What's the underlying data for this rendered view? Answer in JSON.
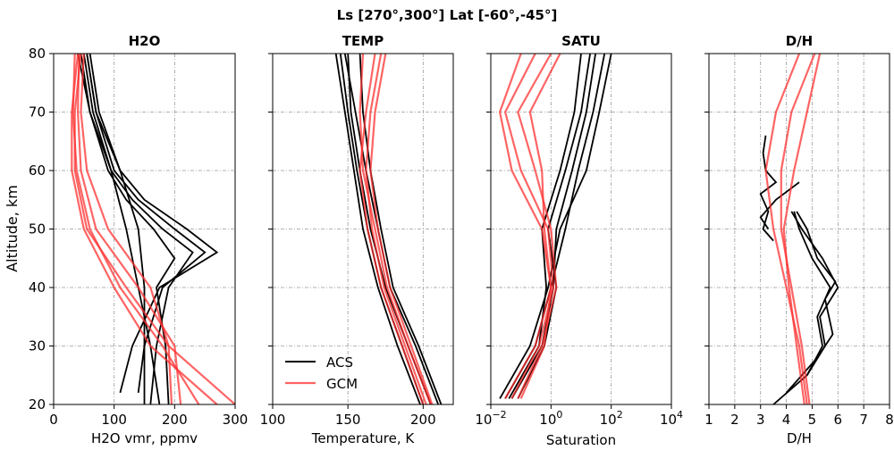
{
  "figure": {
    "suptitle": "Ls [270°,300°] Lat [-60°,-45°]",
    "ylabel": "Altitude, km",
    "y_ticks": [
      "20",
      "30",
      "40",
      "50",
      "60",
      "70",
      "80"
    ],
    "legend": {
      "acs": "ACS",
      "gcm": "GCM"
    },
    "colors": {
      "acs": "#000000",
      "gcm": "#ff3030"
    }
  },
  "chart_data": [
    {
      "type": "line",
      "title": "H2O",
      "xlabel": "H2O vmr, ppmv",
      "xscale": "linear",
      "xlim": [
        0,
        300
      ],
      "ylim": [
        20,
        80
      ],
      "x_ticks": [
        "0",
        "100",
        "200",
        "300"
      ],
      "grid": true,
      "series": [
        {
          "group": "ACS",
          "altitude": [
            22,
            30,
            40,
            46,
            50,
            55,
            60,
            70,
            80
          ],
          "x": [
            110,
            130,
            175,
            270,
            220,
            150,
            110,
            75,
            60
          ]
        },
        {
          "group": "ACS",
          "altitude": [
            22,
            30,
            40,
            46,
            50,
            55,
            60,
            70,
            80
          ],
          "x": [
            140,
            150,
            180,
            250,
            200,
            140,
            100,
            70,
            55
          ]
        },
        {
          "group": "ACS",
          "altitude": [
            20,
            30,
            40,
            46,
            50,
            55,
            60,
            70,
            80
          ],
          "x": [
            160,
            170,
            190,
            230,
            180,
            130,
            95,
            65,
            50
          ]
        },
        {
          "group": "ACS",
          "altitude": [
            20,
            30,
            40,
            45,
            50,
            55,
            60,
            70,
            80
          ],
          "x": [
            190,
            185,
            170,
            200,
            165,
            120,
            90,
            60,
            45
          ]
        },
        {
          "group": "ACS",
          "altitude": [
            20,
            30,
            40,
            50,
            60,
            70,
            80
          ],
          "x": [
            150,
            150,
            150,
            140,
            110,
            70,
            55
          ]
        },
        {
          "group": "ACS",
          "altitude": [
            20,
            30,
            40,
            50,
            60,
            70,
            80
          ],
          "x": [
            175,
            160,
            140,
            120,
            95,
            60,
            40
          ]
        },
        {
          "group": "GCM",
          "altitude": [
            20,
            30,
            40,
            50,
            60,
            70,
            80
          ],
          "x": [
            300,
            190,
            120,
            55,
            35,
            35,
            45
          ]
        },
        {
          "group": "GCM",
          "altitude": [
            20,
            30,
            40,
            50,
            60,
            70,
            80
          ],
          "x": [
            270,
            160,
            100,
            50,
            30,
            30,
            40
          ]
        },
        {
          "group": "GCM",
          "altitude": [
            20,
            30,
            40,
            50,
            60,
            70,
            80
          ],
          "x": [
            240,
            180,
            110,
            60,
            38,
            32,
            35
          ]
        },
        {
          "group": "GCM",
          "altitude": [
            20,
            30,
            40,
            50,
            60,
            70,
            80
          ],
          "x": [
            210,
            200,
            140,
            70,
            45,
            40,
            42
          ]
        },
        {
          "group": "GCM",
          "altitude": [
            20,
            30,
            40,
            50,
            60,
            70,
            80
          ],
          "x": [
            195,
            190,
            160,
            90,
            55,
            45,
            50
          ]
        }
      ]
    },
    {
      "type": "line",
      "title": "TEMP",
      "xlabel": "Temperature, K",
      "xscale": "linear",
      "xlim": [
        100,
        220
      ],
      "ylim": [
        20,
        80
      ],
      "x_ticks": [
        "100",
        "150",
        "200"
      ],
      "grid": true,
      "series": [
        {
          "group": "ACS",
          "altitude": [
            20,
            30,
            40,
            50,
            60,
            70,
            80
          ],
          "x": [
            210,
            195,
            178,
            170,
            162,
            155,
            148
          ]
        },
        {
          "group": "ACS",
          "altitude": [
            20,
            30,
            40,
            50,
            60,
            70,
            80
          ],
          "x": [
            205,
            190,
            175,
            165,
            158,
            152,
            150
          ]
        },
        {
          "group": "ACS",
          "altitude": [
            20,
            30,
            40,
            50,
            60,
            70,
            80
          ],
          "x": [
            200,
            186,
            172,
            163,
            156,
            150,
            145
          ]
        },
        {
          "group": "ACS",
          "altitude": [
            20,
            30,
            40,
            50,
            60,
            70,
            80
          ],
          "x": [
            198,
            183,
            170,
            160,
            154,
            148,
            142
          ]
        },
        {
          "group": "ACS",
          "altitude": [
            20,
            30,
            40,
            50,
            60,
            70,
            80
          ],
          "x": [
            212,
            197,
            180,
            172,
            165,
            160,
            158
          ]
        },
        {
          "group": "GCM",
          "altitude": [
            20,
            30,
            40,
            50,
            60,
            70,
            80
          ],
          "x": [
            205,
            190,
            176,
            168,
            160,
            158,
            160
          ]
        },
        {
          "group": "GCM",
          "altitude": [
            20,
            30,
            40,
            50,
            60,
            70,
            80
          ],
          "x": [
            200,
            186,
            172,
            163,
            158,
            162,
            168
          ]
        },
        {
          "group": "GCM",
          "altitude": [
            20,
            30,
            40,
            50,
            60,
            70,
            80
          ],
          "x": [
            202,
            188,
            174,
            166,
            162,
            165,
            172
          ]
        },
        {
          "group": "GCM",
          "altitude": [
            20,
            30,
            40,
            50,
            60,
            70,
            80
          ],
          "x": [
            206,
            192,
            178,
            170,
            165,
            168,
            175
          ]
        }
      ]
    },
    {
      "type": "line",
      "title": "SATU",
      "xlabel": "Saturation",
      "xscale": "log",
      "xlim": [
        0.01,
        10000
      ],
      "ylim": [
        20,
        80
      ],
      "x_ticks": [
        0.01,
        1,
        100,
        10000
      ],
      "x_tick_labels": [
        {
          "base": "10",
          "exp": "−2"
        },
        {
          "base": "10",
          "exp": "0"
        },
        {
          "base": "10",
          "exp": "2"
        },
        {
          "base": "10",
          "exp": "4"
        }
      ],
      "grid": true,
      "series": [
        {
          "group": "ACS",
          "altitude": [
            21,
            30,
            40,
            50,
            60,
            70,
            80
          ],
          "x": [
            0.02,
            0.2,
            0.8,
            2,
            15,
            40,
            100
          ]
        },
        {
          "group": "ACS",
          "altitude": [
            21,
            30,
            40,
            50,
            60,
            70,
            80
          ],
          "x": [
            0.03,
            0.3,
            1,
            3,
            8,
            25,
            60
          ]
        },
        {
          "group": "ACS",
          "altitude": [
            21,
            30,
            40,
            50,
            60,
            70,
            80
          ],
          "x": [
            0.05,
            0.5,
            1.2,
            1.5,
            5,
            15,
            30
          ]
        },
        {
          "group": "ACS",
          "altitude": [
            21,
            30,
            40,
            50,
            60,
            70,
            80
          ],
          "x": [
            0.08,
            0.6,
            1.5,
            0.8,
            3,
            10,
            20
          ]
        },
        {
          "group": "ACS",
          "altitude": [
            21,
            30,
            40,
            50,
            60,
            70,
            80
          ],
          "x": [
            0.04,
            0.4,
            0.7,
            0.5,
            2,
            6,
            10
          ]
        },
        {
          "group": "GCM",
          "altitude": [
            21,
            30,
            40,
            50,
            60,
            70,
            80
          ],
          "x": [
            0.03,
            0.3,
            1,
            0.5,
            0.05,
            0.02,
            0.1
          ]
        },
        {
          "group": "GCM",
          "altitude": [
            21,
            30,
            40,
            50,
            60,
            70,
            80
          ],
          "x": [
            0.05,
            0.4,
            1.2,
            0.8,
            0.1,
            0.03,
            0.3
          ]
        },
        {
          "group": "GCM",
          "altitude": [
            21,
            30,
            40,
            50,
            60,
            70,
            80
          ],
          "x": [
            0.08,
            0.5,
            1.5,
            1,
            0.3,
            0.08,
            1
          ]
        },
        {
          "group": "GCM",
          "altitude": [
            21,
            30,
            40,
            50,
            60,
            70,
            80
          ],
          "x": [
            0.1,
            0.6,
            1,
            0.6,
            0.5,
            0.2,
            2
          ]
        }
      ]
    },
    {
      "type": "line",
      "title": "D/H",
      "xlabel": "D/H",
      "xscale": "linear",
      "xlim": [
        1,
        8
      ],
      "ylim": [
        20,
        80
      ],
      "x_ticks": [
        "1",
        "2",
        "3",
        "4",
        "5",
        "6",
        "7",
        "8"
      ],
      "grid": true,
      "series": [
        {
          "group": "ACS",
          "altitude": [
            20,
            25,
            30,
            35,
            40,
            45,
            50,
            53
          ],
          "x": [
            3.5,
            4.8,
            5.5,
            5.3,
            6,
            5.4,
            4.6,
            4.2
          ]
        },
        {
          "group": "ACS",
          "altitude": [
            22,
            28,
            32,
            38,
            41,
            45,
            50,
            53
          ],
          "x": [
            4,
            5.2,
            5.8,
            5.5,
            5.9,
            5.2,
            4.8,
            4.4
          ]
        },
        {
          "group": "ACS",
          "altitude": [
            25,
            30,
            35,
            40,
            45,
            50,
            53
          ],
          "x": [
            4.8,
            5.4,
            5.2,
            5.7,
            5,
            4.5,
            4.3
          ]
        },
        {
          "group": "ACS",
          "altitude": [
            48,
            50,
            53,
            56,
            58,
            60,
            63,
            66
          ],
          "x": [
            3.5,
            3.1,
            3.3,
            3.0,
            3.6,
            3.2,
            3.1,
            3.2
          ]
        },
        {
          "group": "ACS",
          "altitude": [
            50,
            52,
            55,
            58
          ],
          "x": [
            3.3,
            3.0,
            3.6,
            4.5
          ]
        },
        {
          "group": "GCM",
          "altitude": [
            20,
            30,
            40,
            50,
            60,
            70,
            80
          ],
          "x": [
            4.8,
            4.5,
            4,
            3.5,
            3.2,
            3.6,
            4.5
          ]
        },
        {
          "group": "GCM",
          "altitude": [
            20,
            30,
            40,
            50,
            60,
            70,
            80
          ],
          "x": [
            4.9,
            4.6,
            4.2,
            3.8,
            3.8,
            4.2,
            5.1
          ]
        },
        {
          "group": "GCM",
          "altitude": [
            20,
            30,
            40,
            50,
            60,
            70,
            80
          ],
          "x": [
            4.7,
            4.4,
            4.1,
            3.9,
            4.3,
            4.8,
            5.3
          ]
        }
      ]
    }
  ]
}
